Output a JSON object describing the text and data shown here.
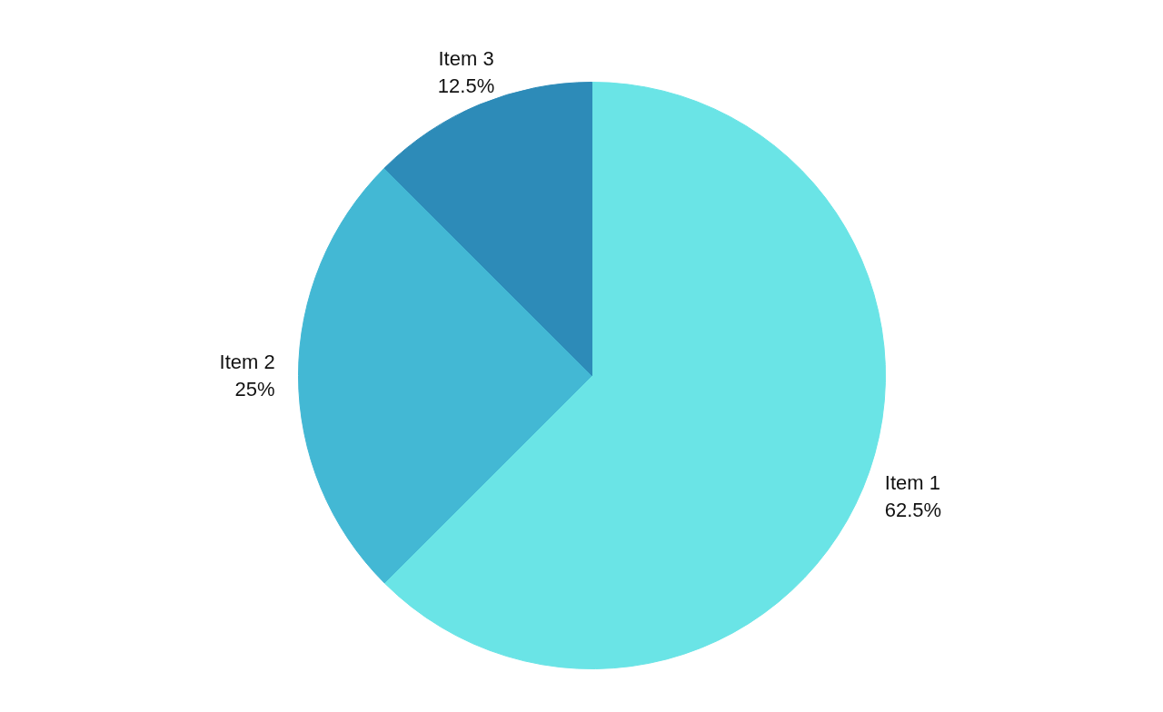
{
  "chart_data": {
    "type": "pie",
    "categories": [
      "Item 1",
      "Item 2",
      "Item 3"
    ],
    "values": [
      62.5,
      25,
      12.5
    ],
    "value_labels": [
      "62.5%",
      "25%",
      "12.5%"
    ],
    "colors": [
      "#6ae4e6",
      "#43b8d4",
      "#2d8bb8"
    ],
    "legend": false
  }
}
